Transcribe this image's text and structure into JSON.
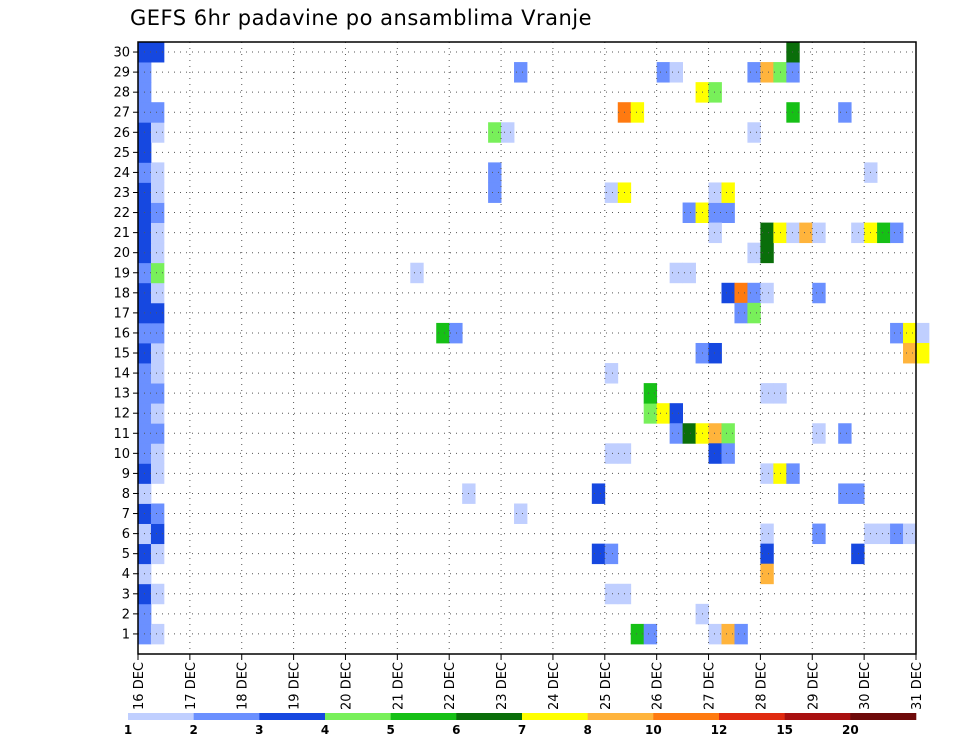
{
  "chart_data": {
    "type": "heatmap",
    "title": "GEFS 6hr padavine po ansamblima Vranje",
    "x_labels": [
      "16 DEC",
      "17 DEC",
      "18 DEC",
      "19 DEC",
      "20 DEC",
      "21 DEC",
      "22 DEC",
      "23 DEC",
      "24 DEC",
      "25 DEC",
      "26 DEC",
      "27 DEC",
      "28 DEC",
      "29 DEC",
      "30 DEC",
      "31 DEC"
    ],
    "y_labels": [
      "1",
      "2",
      "3",
      "4",
      "5",
      "6",
      "7",
      "8",
      "9",
      "10",
      "11",
      "12",
      "13",
      "14",
      "15",
      "16",
      "17",
      "18",
      "19",
      "20",
      "21",
      "22",
      "23",
      "24",
      "25",
      "26",
      "27",
      "28",
      "29",
      "30"
    ],
    "time_steps_per_day": 4,
    "levels": [
      "1",
      "2",
      "3",
      "4",
      "5",
      "6",
      "7",
      "8",
      "10",
      "12",
      "15",
      "20"
    ],
    "colors": [
      "#c0cfff",
      "#6b90ff",
      "#1648e0",
      "#78f05a",
      "#16c016",
      "#0a6e0a",
      "#ffff00",
      "#ffb43c",
      "#ff7a10",
      "#e02a10",
      "#a81010",
      "#6e0a0a"
    ],
    "cells": [
      {
        "m": 1,
        "t": 1,
        "c": 2
      },
      {
        "m": 1,
        "t": 2,
        "c": 1
      },
      {
        "m": 2,
        "t": 1,
        "c": 2
      },
      {
        "m": 3,
        "t": 1,
        "c": 3
      },
      {
        "m": 3,
        "t": 2,
        "c": 1
      },
      {
        "m": 4,
        "t": 1,
        "c": 1
      },
      {
        "m": 5,
        "t": 1,
        "c": 3
      },
      {
        "m": 5,
        "t": 2,
        "c": 1
      },
      {
        "m": 6,
        "t": 1,
        "c": 1
      },
      {
        "m": 6,
        "t": 2,
        "c": 3
      },
      {
        "m": 7,
        "t": 1,
        "c": 3
      },
      {
        "m": 7,
        "t": 2,
        "c": 2
      },
      {
        "m": 8,
        "t": 1,
        "c": 1
      },
      {
        "m": 9,
        "t": 1,
        "c": 3
      },
      {
        "m": 9,
        "t": 2,
        "c": 1
      },
      {
        "m": 10,
        "t": 1,
        "c": 2
      },
      {
        "m": 10,
        "t": 2,
        "c": 1
      },
      {
        "m": 11,
        "t": 1,
        "c": 2
      },
      {
        "m": 11,
        "t": 2,
        "c": 2
      },
      {
        "m": 12,
        "t": 1,
        "c": 2
      },
      {
        "m": 12,
        "t": 2,
        "c": 1
      },
      {
        "m": 13,
        "t": 1,
        "c": 2
      },
      {
        "m": 13,
        "t": 2,
        "c": 2
      },
      {
        "m": 14,
        "t": 1,
        "c": 2
      },
      {
        "m": 14,
        "t": 2,
        "c": 1
      },
      {
        "m": 15,
        "t": 1,
        "c": 3
      },
      {
        "m": 15,
        "t": 2,
        "c": 1
      },
      {
        "m": 16,
        "t": 1,
        "c": 2
      },
      {
        "m": 16,
        "t": 2,
        "c": 2
      },
      {
        "m": 17,
        "t": 1,
        "c": 3
      },
      {
        "m": 17,
        "t": 2,
        "c": 3
      },
      {
        "m": 18,
        "t": 1,
        "c": 3
      },
      {
        "m": 18,
        "t": 2,
        "c": 1
      },
      {
        "m": 19,
        "t": 1,
        "c": 2
      },
      {
        "m": 19,
        "t": 2,
        "c": 4
      },
      {
        "m": 20,
        "t": 1,
        "c": 3
      },
      {
        "m": 20,
        "t": 2,
        "c": 1
      },
      {
        "m": 21,
        "t": 1,
        "c": 3
      },
      {
        "m": 21,
        "t": 2,
        "c": 1
      },
      {
        "m": 22,
        "t": 1,
        "c": 3
      },
      {
        "m": 22,
        "t": 2,
        "c": 2
      },
      {
        "m": 23,
        "t": 1,
        "c": 3
      },
      {
        "m": 23,
        "t": 2,
        "c": 1
      },
      {
        "m": 24,
        "t": 1,
        "c": 2
      },
      {
        "m": 24,
        "t": 2,
        "c": 1
      },
      {
        "m": 25,
        "t": 1,
        "c": 3
      },
      {
        "m": 26,
        "t": 1,
        "c": 3
      },
      {
        "m": 26,
        "t": 2,
        "c": 1
      },
      {
        "m": 27,
        "t": 1,
        "c": 2
      },
      {
        "m": 27,
        "t": 2,
        "c": 2
      },
      {
        "m": 28,
        "t": 1,
        "c": 2
      },
      {
        "m": 29,
        "t": 1,
        "c": 2
      },
      {
        "m": 30,
        "t": 1,
        "c": 3
      },
      {
        "m": 30,
        "t": 2,
        "c": 3
      },
      {
        "m": 19,
        "t": 22,
        "c": 1
      },
      {
        "m": 16,
        "t": 24,
        "c": 5
      },
      {
        "m": 16,
        "t": 25,
        "c": 2
      },
      {
        "m": 8,
        "t": 26,
        "c": 1
      },
      {
        "m": 26,
        "t": 28,
        "c": 4
      },
      {
        "m": 26,
        "t": 29,
        "c": 1
      },
      {
        "m": 24,
        "t": 28,
        "c": 2
      },
      {
        "m": 23,
        "t": 28,
        "c": 2
      },
      {
        "m": 29,
        "t": 30,
        "c": 2
      },
      {
        "m": 7,
        "t": 30,
        "c": 1
      },
      {
        "m": 8,
        "t": 36,
        "c": 3
      },
      {
        "m": 5,
        "t": 36,
        "c": 3
      },
      {
        "m": 5,
        "t": 37,
        "c": 2
      },
      {
        "m": 3,
        "t": 37,
        "c": 1
      },
      {
        "m": 3,
        "t": 38,
        "c": 1
      },
      {
        "m": 10,
        "t": 37,
        "c": 1
      },
      {
        "m": 10,
        "t": 38,
        "c": 1
      },
      {
        "m": 14,
        "t": 37,
        "c": 1
      },
      {
        "m": 23,
        "t": 37,
        "c": 1
      },
      {
        "m": 23,
        "t": 38,
        "c": 7
      },
      {
        "m": 27,
        "t": 38,
        "c": 9
      },
      {
        "m": 27,
        "t": 39,
        "c": 7
      },
      {
        "m": 1,
        "t": 39,
        "c": 5
      },
      {
        "m": 1,
        "t": 40,
        "c": 2
      },
      {
        "m": 12,
        "t": 40,
        "c": 4
      },
      {
        "m": 12,
        "t": 41,
        "c": 7
      },
      {
        "m": 12,
        "t": 42,
        "c": 3
      },
      {
        "m": 13,
        "t": 40,
        "c": 5
      },
      {
        "m": 29,
        "t": 41,
        "c": 2
      },
      {
        "m": 29,
        "t": 42,
        "c": 1
      },
      {
        "m": 11,
        "t": 42,
        "c": 2
      },
      {
        "m": 11,
        "t": 43,
        "c": 6
      },
      {
        "m": 11,
        "t": 44,
        "c": 7
      },
      {
        "m": 11,
        "t": 45,
        "c": 8
      },
      {
        "m": 11,
        "t": 46,
        "c": 4
      },
      {
        "m": 19,
        "t": 42,
        "c": 1
      },
      {
        "m": 19,
        "t": 43,
        "c": 1
      },
      {
        "m": 22,
        "t": 43,
        "c": 2
      },
      {
        "m": 22,
        "t": 44,
        "c": 7
      },
      {
        "m": 22,
        "t": 45,
        "c": 2
      },
      {
        "m": 22,
        "t": 46,
        "c": 2
      },
      {
        "m": 2,
        "t": 44,
        "c": 1
      },
      {
        "m": 15,
        "t": 44,
        "c": 2
      },
      {
        "m": 15,
        "t": 45,
        "c": 3
      },
      {
        "m": 28,
        "t": 44,
        "c": 7
      },
      {
        "m": 28,
        "t": 45,
        "c": 4
      },
      {
        "m": 1,
        "t": 45,
        "c": 1
      },
      {
        "m": 1,
        "t": 46,
        "c": 8
      },
      {
        "m": 1,
        "t": 47,
        "c": 2
      },
      {
        "m": 10,
        "t": 45,
        "c": 3
      },
      {
        "m": 10,
        "t": 46,
        "c": 2
      },
      {
        "m": 21,
        "t": 45,
        "c": 1
      },
      {
        "m": 23,
        "t": 45,
        "c": 1
      },
      {
        "m": 23,
        "t": 46,
        "c": 7
      },
      {
        "m": 18,
        "t": 46,
        "c": 3
      },
      {
        "m": 18,
        "t": 47,
        "c": 9
      },
      {
        "m": 18,
        "t": 48,
        "c": 2
      },
      {
        "m": 18,
        "t": 49,
        "c": 1
      },
      {
        "m": 17,
        "t": 47,
        "c": 2
      },
      {
        "m": 17,
        "t": 48,
        "c": 4
      },
      {
        "m": 29,
        "t": 48,
        "c": 2
      },
      {
        "m": 29,
        "t": 49,
        "c": 8
      },
      {
        "m": 29,
        "t": 50,
        "c": 4
      },
      {
        "m": 29,
        "t": 51,
        "c": 2
      },
      {
        "m": 26,
        "t": 48,
        "c": 1
      },
      {
        "m": 20,
        "t": 48,
        "c": 1
      },
      {
        "m": 20,
        "t": 49,
        "c": 6
      },
      {
        "m": 21,
        "t": 49,
        "c": 6
      },
      {
        "m": 21,
        "t": 50,
        "c": 7
      },
      {
        "m": 21,
        "t": 51,
        "c": 1
      },
      {
        "m": 21,
        "t": 52,
        "c": 8
      },
      {
        "m": 21,
        "t": 53,
        "c": 1
      },
      {
        "m": 6,
        "t": 49,
        "c": 1
      },
      {
        "m": 5,
        "t": 49,
        "c": 3
      },
      {
        "m": 4,
        "t": 49,
        "c": 8
      },
      {
        "m": 9,
        "t": 49,
        "c": 1
      },
      {
        "m": 9,
        "t": 50,
        "c": 7
      },
      {
        "m": 9,
        "t": 51,
        "c": 2
      },
      {
        "m": 13,
        "t": 49,
        "c": 1
      },
      {
        "m": 13,
        "t": 50,
        "c": 1
      },
      {
        "m": 30,
        "t": 51,
        "c": 6
      },
      {
        "m": 27,
        "t": 51,
        "c": 5
      },
      {
        "m": 18,
        "t": 53,
        "c": 2
      },
      {
        "m": 6,
        "t": 53,
        "c": 2
      },
      {
        "m": 11,
        "t": 53,
        "c": 1
      },
      {
        "m": 27,
        "t": 55,
        "c": 2
      },
      {
        "m": 11,
        "t": 55,
        "c": 2
      },
      {
        "m": 8,
        "t": 55,
        "c": 2
      },
      {
        "m": 8,
        "t": 56,
        "c": 2
      },
      {
        "m": 5,
        "t": 56,
        "c": 3
      },
      {
        "m": 21,
        "t": 56,
        "c": 1
      },
      {
        "m": 21,
        "t": 57,
        "c": 7
      },
      {
        "m": 21,
        "t": 58,
        "c": 5
      },
      {
        "m": 21,
        "t": 59,
        "c": 2
      },
      {
        "m": 24,
        "t": 57,
        "c": 1
      },
      {
        "m": 6,
        "t": 57,
        "c": 1
      },
      {
        "m": 6,
        "t": 58,
        "c": 1
      },
      {
        "m": 6,
        "t": 59,
        "c": 2
      },
      {
        "m": 6,
        "t": 60,
        "c": 1
      },
      {
        "m": 16,
        "t": 59,
        "c": 2
      },
      {
        "m": 16,
        "t": 60,
        "c": 7
      },
      {
        "m": 16,
        "t": 61,
        "c": 1
      },
      {
        "m": 15,
        "t": 60,
        "c": 8
      },
      {
        "m": 15,
        "t": 61,
        "c": 7
      }
    ]
  },
  "legend_labels": [
    "1",
    "2",
    "3",
    "4",
    "5",
    "6",
    "7",
    "8",
    "10",
    "12",
    "15",
    "20"
  ]
}
